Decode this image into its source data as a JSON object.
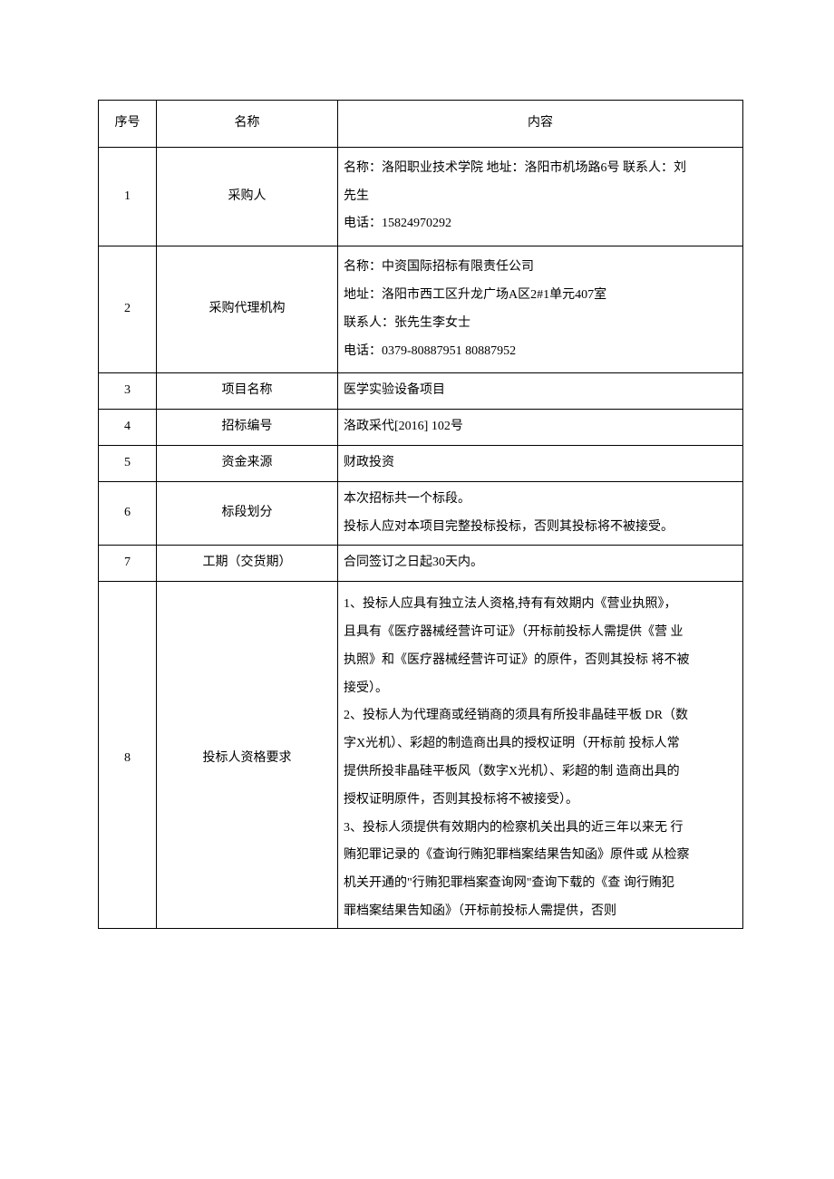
{
  "table": {
    "headers": {
      "seq": "序号",
      "name": "名称",
      "content": "内容"
    },
    "rows": [
      {
        "seq": "1",
        "name": "采购人",
        "content_lines": [
          "名称：洛阳职业技术学院 地址：洛阳市机场路6号 联系人：刘",
          "先生",
          "电话：15824970292"
        ]
      },
      {
        "seq": "2",
        "name": "采购代理机构",
        "content_lines": [
          "名称：中资国际招标有限责任公司",
          "地址：洛阳市西工区升龙广场A区2#1单元407室",
          "联系人：张先生李女士",
          "电话：0379-80887951 80887952"
        ]
      },
      {
        "seq": "3",
        "name": "项目名称",
        "content_lines": [
          "医学实验设备项目"
        ]
      },
      {
        "seq": "4",
        "name": "招标编号",
        "content_lines": [
          "洛政采代[2016] 102号"
        ]
      },
      {
        "seq": "5",
        "name": "资金来源",
        "content_lines": [
          "财政投资"
        ]
      },
      {
        "seq": "6",
        "name": "标段划分",
        "content_lines": [
          "本次招标共一个标段。",
          "投标人应对本项目完整投标投标，否则其投标将不被接受。"
        ]
      },
      {
        "seq": "7",
        "name": "工期（交货期）",
        "content_lines": [
          "合同签订之日起30天内。"
        ]
      },
      {
        "seq": "8",
        "name": "投标人资格要求",
        "content_lines": [
          "1、投标人应具有独立法人资格,持有有效期内《营业执照》，",
          "且具有《医疗器械经营许可证》（开标前投标人需提供《营 业",
          "执照》和《医疗器械经营许可证》的原件，否则其投标 将不被",
          "接受）。",
          "2、投标人为代理商或经销商的须具有所投非晶硅平板 DR（数",
          "字X光机）、彩超的制造商出具的授权证明（开标前 投标人常",
          "提供所投非晶硅平板风（数字X光机）、彩超的制 造商出具的",
          "授权证明原件，否则其投标将不被接受）。",
          "3、投标人须提供有效期内的检察机关出具的近三年以来无 行",
          "贿犯罪记录的《查询行贿犯罪档案结果告知函》原件或 从检察",
          "机关开通的\"行贿犯罪档案查询网\"查询下载的《查 询行贿犯",
          "罪档案结果告知函》（开标前投标人需提供，否则"
        ]
      }
    ],
    "column_widths": {
      "seq": 64,
      "name": 200
    },
    "border_color": "#000000",
    "font_family": "SimSun",
    "font_size": 14,
    "background_color": "#ffffff"
  }
}
